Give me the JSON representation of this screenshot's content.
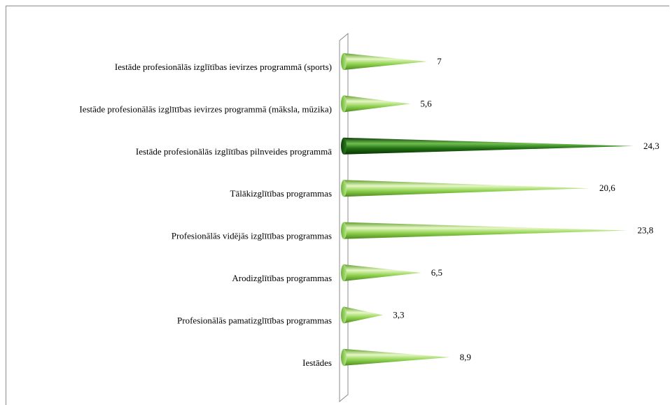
{
  "chart_data": {
    "type": "bar",
    "orientation": "horizontal",
    "categories": [
      "Iestāde profesionālās izglītības ievirzes programmā (sports)",
      "Iestāde profesionālās izglītības ievirzes programmā (māksla, mūzika)",
      "Iestāde profesionālās izglītības pilnveides programmā",
      "Tālākizglītības programmas",
      "Profesionālās vidējās izglītības programmas",
      "Arodizglītības programmas",
      "Profesionālās pamatizglītības programmas",
      "Iestādes"
    ],
    "values": [
      7,
      5.6,
      24.3,
      20.6,
      23.8,
      6.5,
      3.3,
      8.9
    ],
    "value_labels": [
      "7",
      "5,6",
      "24,3",
      "20,6",
      "23,8",
      "6,5",
      "3,3",
      "8,9"
    ],
    "highlight_index": 2,
    "colors": {
      "bar": "#8fd14f",
      "bar_light": "#e6f7c4",
      "bar_dark": "#5f9e2a",
      "highlight": "#1f6b12",
      "highlight_light": "#6fbf4f",
      "highlight_dark": "#0d3d08",
      "axis": "#8c8c8c"
    },
    "title": "",
    "xlabel": "",
    "ylabel": "",
    "xlim": [
      0,
      24.3
    ],
    "grid": false,
    "legend": "none"
  }
}
